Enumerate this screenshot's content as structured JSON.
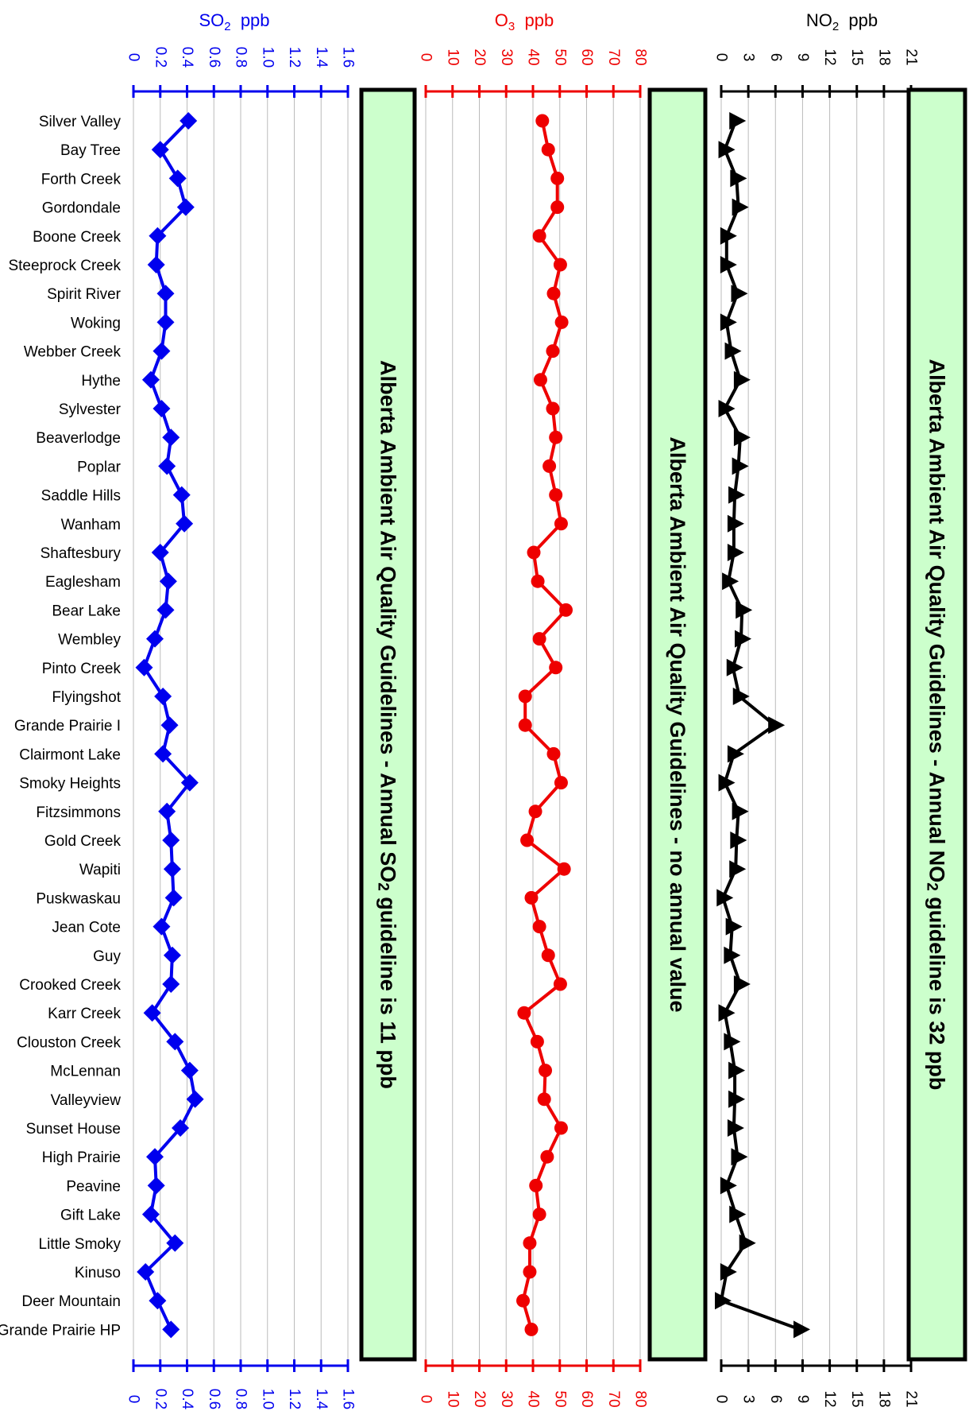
{
  "chart_data": [
    {
      "type": "line",
      "title_prefix": "SO",
      "title_sub": "2",
      "unit": "ppb",
      "color": "#0000ee",
      "xlim": [
        0,
        1.6
      ],
      "ticks": [
        "0",
        "0.2",
        "0.4",
        "0.6",
        "0.8",
        "1.0",
        "1.2",
        "1.4",
        "1.6"
      ],
      "marker": "diamond",
      "guideline_lines": [
        "Alberta Ambient Air Quality Guidelines - Annual SO",
        "2",
        " guideline is 11 ppb"
      ],
      "values": [
        0.41,
        0.2,
        0.33,
        0.39,
        0.18,
        0.17,
        0.24,
        0.24,
        0.21,
        0.13,
        0.21,
        0.28,
        0.25,
        0.36,
        0.38,
        0.2,
        0.26,
        0.24,
        0.16,
        0.08,
        0.22,
        0.27,
        0.22,
        0.42,
        0.25,
        0.28,
        0.29,
        0.3,
        0.21,
        0.29,
        0.28,
        0.14,
        0.31,
        0.42,
        0.46,
        0.35,
        0.16,
        0.17,
        0.13,
        0.31,
        0.09,
        0.18,
        0.28
      ]
    },
    {
      "type": "line",
      "title_prefix": "O",
      "title_sub": "3",
      "unit": "ppb",
      "color": "#ee0000",
      "xlim": [
        0,
        80
      ],
      "ticks": [
        "0",
        "10",
        "20",
        "30",
        "40",
        "50",
        "60",
        "70",
        "80"
      ],
      "marker": "circle",
      "guideline_lines": [
        "Alberta Ambient Air Quality Guidelines - no annual value"
      ],
      "values": [
        43.5,
        45.7,
        49.1,
        49.1,
        42.4,
        50.2,
        47.7,
        50.7,
        47.4,
        42.8,
        47.4,
        48.5,
        46.1,
        48.5,
        50.5,
        40.3,
        41.8,
        52.3,
        42.4,
        48.5,
        37.1,
        37.1,
        47.7,
        50.5,
        40.9,
        37.8,
        51.6,
        39.4,
        42.4,
        45.7,
        50.2,
        36.7,
        41.6,
        44.6,
        44.2,
        50.5,
        45.3,
        41.1,
        42.4,
        38.8,
        38.8,
        36.3,
        39.4
      ]
    },
    {
      "type": "line",
      "title_prefix": "NO",
      "title_sub": "2",
      "unit": "ppb",
      "color": "#000000",
      "xlim": [
        0,
        21
      ],
      "ticks": [
        "0",
        "3",
        "6",
        "9",
        "12",
        "15",
        "18",
        "21"
      ],
      "marker": "triangle",
      "guideline_lines": [
        "Alberta Ambient Air Quality Guidelines - Annual NO",
        "2",
        " guideline is 32 ppb"
      ],
      "values": [
        1.6,
        0.4,
        1.7,
        1.9,
        0.6,
        0.6,
        1.8,
        0.6,
        1.1,
        2.1,
        0.4,
        2.1,
        1.9,
        1.5,
        1.4,
        1.4,
        0.8,
        2.3,
        2.2,
        1.3,
        2.0,
        5.9,
        1.4,
        0.4,
        1.9,
        1.7,
        1.6,
        0.2,
        1.2,
        1.0,
        2.1,
        0.4,
        1.0,
        1.5,
        1.5,
        1.4,
        1.8,
        0.6,
        1.6,
        2.7,
        0.6,
        0.0,
        8.7
      ]
    }
  ],
  "stations": [
    "Silver Valley",
    "Bay Tree",
    "Forth Creek",
    "Gordondale",
    "Boone Creek",
    "Steeprock Creek",
    "Spirit River",
    "Woking",
    "Webber Creek",
    "Hythe",
    "Sylvester",
    "Beaverlodge",
    "Poplar",
    "Saddle Hills",
    "Wanham",
    "Shaftesbury",
    "Eaglesham",
    "Bear Lake",
    "Wembley",
    "Pinto Creek",
    "Flyingshot",
    "Grande Prairie I",
    "Clairmont Lake",
    "Smoky Heights",
    "Fitzsimmons",
    "Gold Creek",
    "Wapiti",
    "Puskwaskau",
    "Jean Cote",
    "Guy",
    "Crooked Creek",
    "Karr Creek",
    "Clouston Creek",
    "McLennan",
    "Valleyview",
    "Sunset House",
    "High Prairie",
    "Peavine",
    "Gift Lake",
    "Little Smoky",
    "Kinuso",
    "Deer Mountain",
    "Grande Prairie HP"
  ],
  "colors": {
    "guideline_fill": "#ccffcc",
    "grid": "#bbbbbb"
  }
}
